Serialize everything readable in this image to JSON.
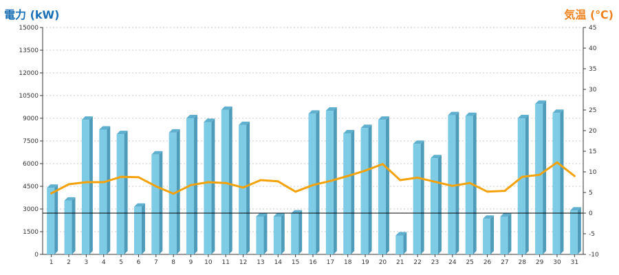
{
  "chart_data": {
    "type": "bar",
    "title": "",
    "y_left": {
      "label": "電力 (kW)",
      "range": [
        0,
        15000
      ],
      "ticks": [
        0,
        1500,
        3000,
        4500,
        6000,
        7500,
        9000,
        10500,
        12000,
        13500,
        15000
      ],
      "color": "#1a6fb5"
    },
    "y_right": {
      "label": "気温 (℃)",
      "range": [
        -10,
        45
      ],
      "ticks": [
        -10,
        -5,
        0,
        5,
        10,
        15,
        20,
        25,
        30,
        35,
        40,
        45
      ],
      "color": "#f0821e"
    },
    "grid": true,
    "categories": [
      "1",
      "2",
      "3",
      "4",
      "5",
      "6",
      "7",
      "8",
      "9",
      "10",
      "11",
      "12",
      "13",
      "14",
      "15",
      "16",
      "17",
      "18",
      "19",
      "20",
      "21",
      "22",
      "23",
      "24",
      "25",
      "26",
      "27",
      "28",
      "29",
      "30",
      "31"
    ],
    "series": [
      {
        "kind": "bar",
        "axis": "left",
        "color": "#7ecbe6",
        "values": [
          4400,
          3550,
          8900,
          8250,
          7950,
          3150,
          6600,
          8050,
          9000,
          8750,
          9550,
          8550,
          2500,
          2500,
          2700,
          9300,
          9500,
          8000,
          8350,
          8900,
          1250,
          7300,
          6350,
          9200,
          9150,
          2350,
          2500,
          9000,
          9950,
          9350,
          2900
        ]
      },
      {
        "kind": "line",
        "axis": "right",
        "color": "#f5a20a",
        "values": [
          4.8,
          7.0,
          7.5,
          7.5,
          8.8,
          8.7,
          6.5,
          4.7,
          6.8,
          7.5,
          7.3,
          6.2,
          8.0,
          7.7,
          5.2,
          6.8,
          7.8,
          9.0,
          10.3,
          11.9,
          8.0,
          8.6,
          7.6,
          6.6,
          7.3,
          5.2,
          5.4,
          8.8,
          9.3,
          12.3,
          9.0
        ]
      }
    ],
    "reference_line": {
      "axis": "right",
      "value": 0,
      "color": "#000000"
    }
  }
}
